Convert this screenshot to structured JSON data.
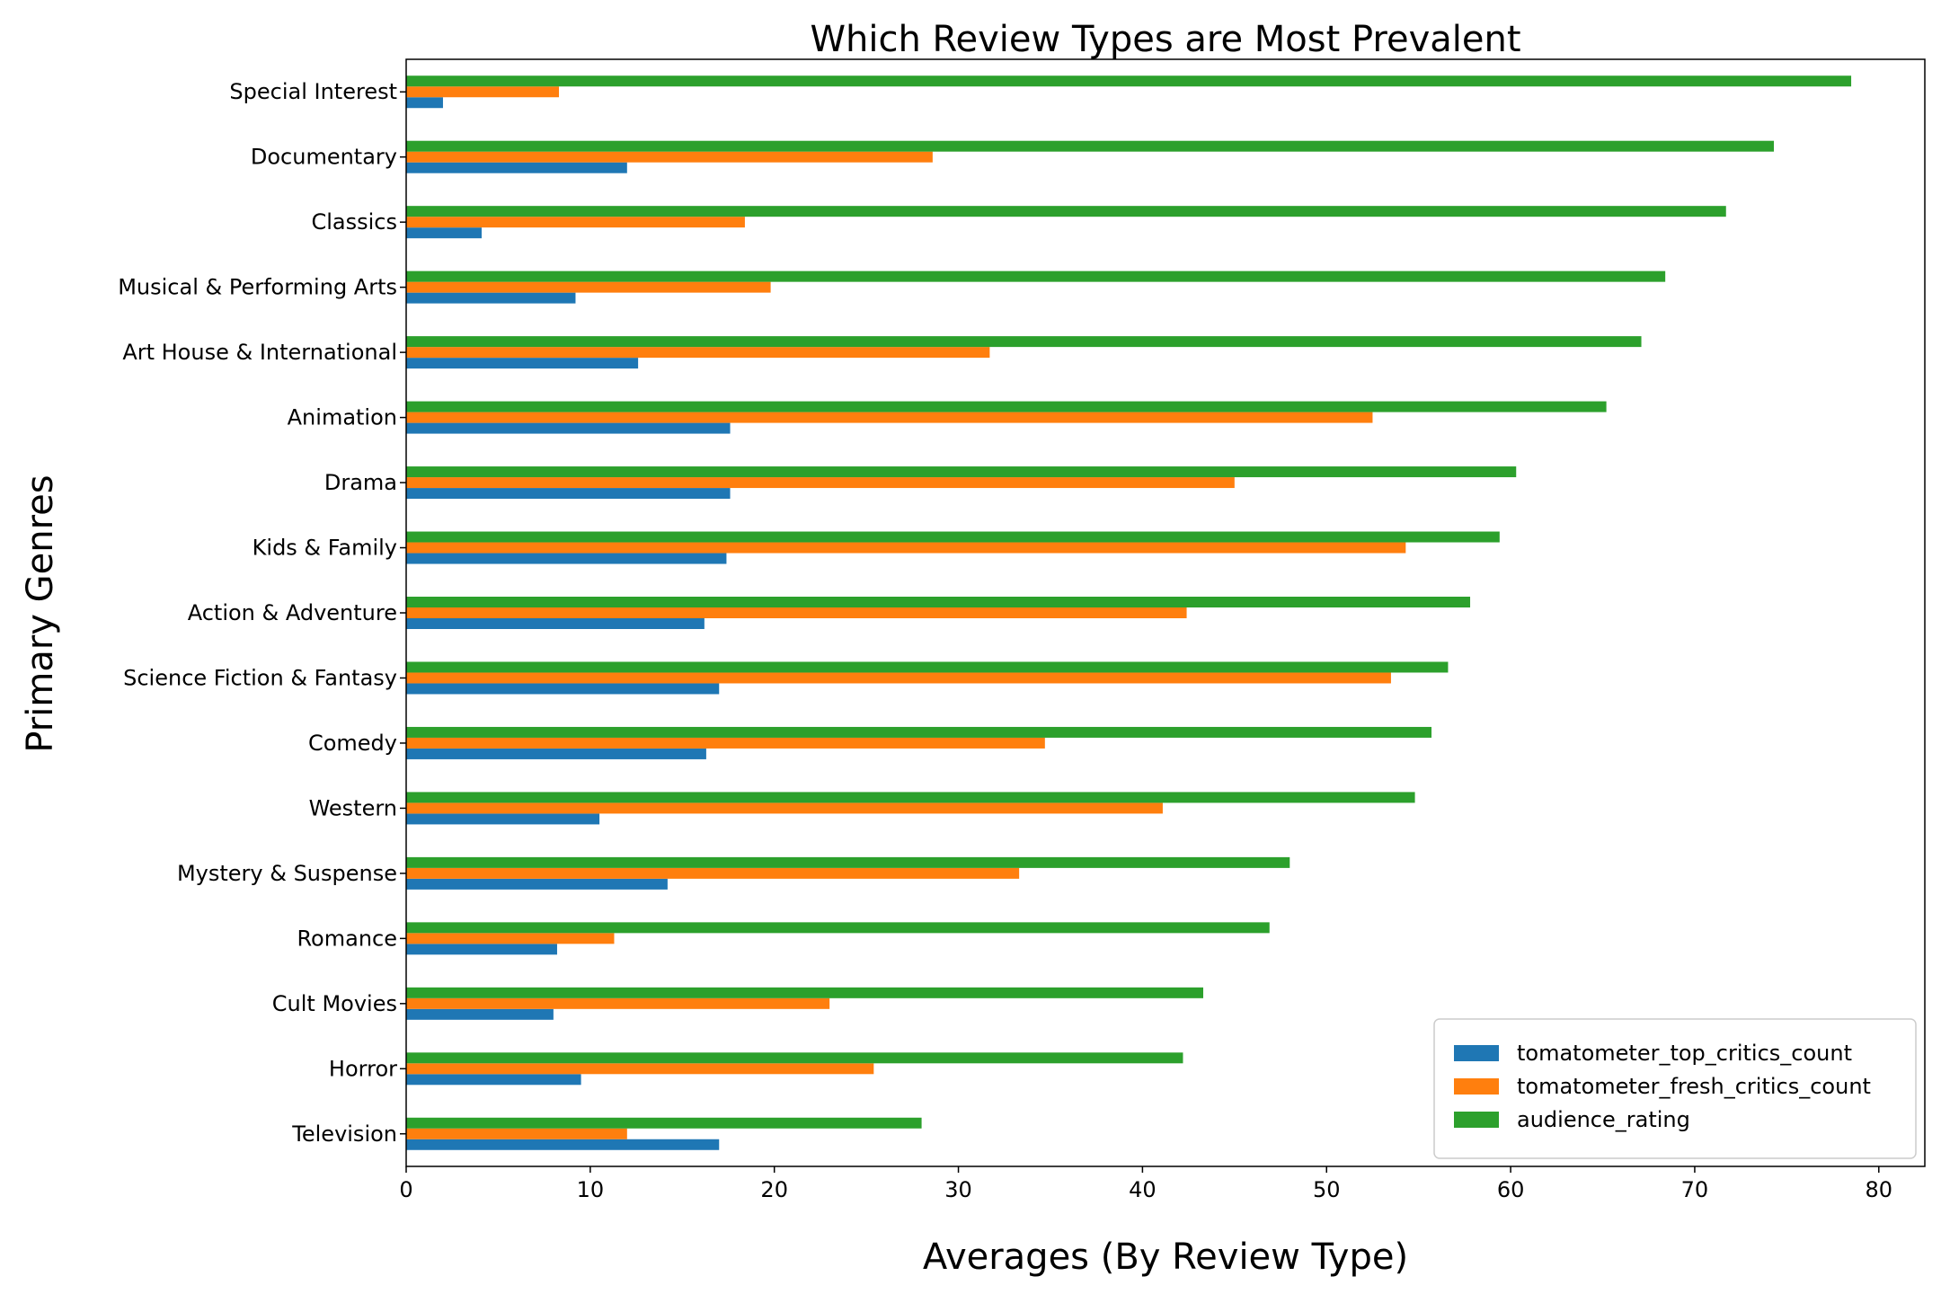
{
  "chart_data": {
    "type": "bar",
    "orientation": "horizontal",
    "title": "Which Review Types are Most Prevalent",
    "xlabel": "Averages (By Review Type)",
    "ylabel": "Primary Genres",
    "xlim": [
      0,
      82.5
    ],
    "xticks": [
      0,
      10,
      20,
      30,
      40,
      50,
      60,
      70,
      80
    ],
    "grid": false,
    "legend_position": "lower-right",
    "categories": [
      "Special Interest",
      "Documentary",
      "Classics",
      "Musical & Performing Arts",
      "Art House & International",
      "Animation",
      "Drama",
      "Kids & Family",
      "Action & Adventure",
      "Science Fiction & Fantasy",
      "Comedy",
      "Western",
      "Mystery & Suspense",
      "Romance",
      "Cult Movies",
      "Horror",
      "Television"
    ],
    "series": [
      {
        "name": "tomatometer_top_critics_count",
        "color": "#1f77b4",
        "values": [
          2.0,
          12.0,
          4.1,
          9.2,
          12.6,
          17.6,
          17.6,
          17.4,
          16.2,
          17.0,
          16.3,
          10.5,
          14.2,
          8.2,
          8.0,
          9.5,
          17.0
        ]
      },
      {
        "name": "tomatometer_fresh_critics_count",
        "color": "#ff7f0e",
        "values": [
          8.3,
          28.6,
          18.4,
          19.8,
          31.7,
          52.5,
          45.0,
          54.3,
          42.4,
          53.5,
          34.7,
          41.1,
          33.3,
          11.3,
          23.0,
          25.4,
          12.0
        ]
      },
      {
        "name": "audience_rating",
        "color": "#2ca02c",
        "values": [
          78.5,
          74.3,
          71.7,
          68.4,
          67.1,
          65.2,
          60.3,
          59.4,
          57.8,
          56.6,
          55.7,
          54.8,
          48.0,
          46.9,
          43.3,
          42.2,
          28.0
        ]
      }
    ]
  }
}
